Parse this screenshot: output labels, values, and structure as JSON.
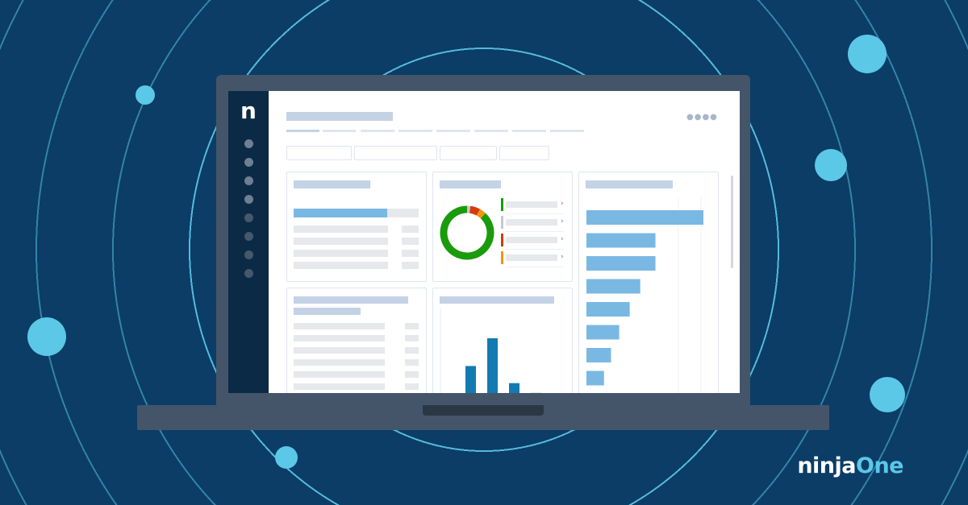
{
  "colors": {
    "background": "#0b3d66",
    "ring": "#5bc8e8",
    "bezel": "#44556a",
    "sidebar": "#0b2a45",
    "green": "#1a9b0c",
    "red": "#d63a0c",
    "orange": "#f2960f",
    "gray": "#c8c8c8",
    "bar_light": "#7ab8e4",
    "bar_dark": "#137bb1"
  },
  "app": {
    "logo_letter": "n",
    "nav_items": 8,
    "active_nav_items": 4
  },
  "donut": {
    "segments": [
      {
        "color": "#1a9b0c",
        "value": 88
      },
      {
        "color": "#c8c8c8",
        "value": 2
      },
      {
        "color": "#d63a0c",
        "value": 6
      },
      {
        "color": "#f2960f",
        "value": 4
      }
    ]
  },
  "progress": {
    "value": 0.75
  },
  "hbars": {
    "values": [
      100,
      59,
      59,
      46,
      37,
      28,
      21,
      15
    ]
  },
  "vbars": {
    "values": [
      46,
      80,
      25,
      13
    ]
  },
  "brand": {
    "prefix": "ninja",
    "suffix": "One"
  }
}
